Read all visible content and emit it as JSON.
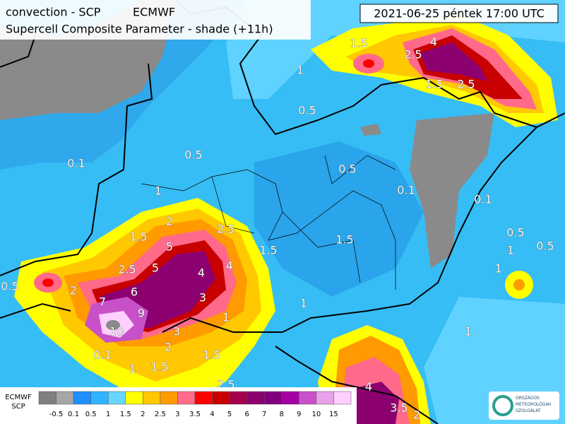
{
  "header": {
    "title": "convection - SCP",
    "model": "ECMWF",
    "subtitle": "Supercell Composite Parameter - shade (+11h)",
    "valid": "2021-06-25 péntek 17:00 UTC"
  },
  "legend": {
    "title": [
      "ECMWF",
      "SCP"
    ],
    "labels": [
      "-0.5",
      "0.1",
      "0.5",
      "1",
      "1.5",
      "2",
      "2.5",
      "3",
      "3.5",
      "4",
      "5",
      "6",
      "7",
      "8",
      "9",
      "10",
      "15"
    ],
    "colors": [
      "#7f7f7f",
      "#a6a6a6",
      "#1e8fff",
      "#30b4ff",
      "#66d6ff",
      "#ffff00",
      "#ffc800",
      "#ff9a00",
      "#ff6a8a",
      "#ff0000",
      "#c80000",
      "#a4004e",
      "#8c0070",
      "#82007e",
      "#a400a4",
      "#c850c8",
      "#e8a0e8",
      "#ffd0ff"
    ]
  },
  "contour_labels": [
    "0.1",
    "0.5",
    "0.5",
    "1",
    "1",
    "1.5",
    "1.5",
    "2",
    "2.5",
    "4",
    "5",
    "5",
    "6",
    "7",
    "9",
    "10",
    "4",
    "3",
    "2.5",
    "1.5",
    "2.5",
    "4",
    "2.5",
    "2",
    "1.5",
    "0.5",
    "0.5",
    "0.1",
    "0.1",
    "0.5",
    "1",
    "1",
    "1.5",
    "1",
    "1",
    "3",
    "2",
    "1.5",
    "2.5",
    "1.5",
    "4",
    "3.5",
    "2",
    "0.1",
    "0.5",
    "1",
    "1"
  ],
  "logo": [
    "ORSZÁGOS",
    "METEOROLÓGIAI",
    "SZOLGÁLAT"
  ]
}
